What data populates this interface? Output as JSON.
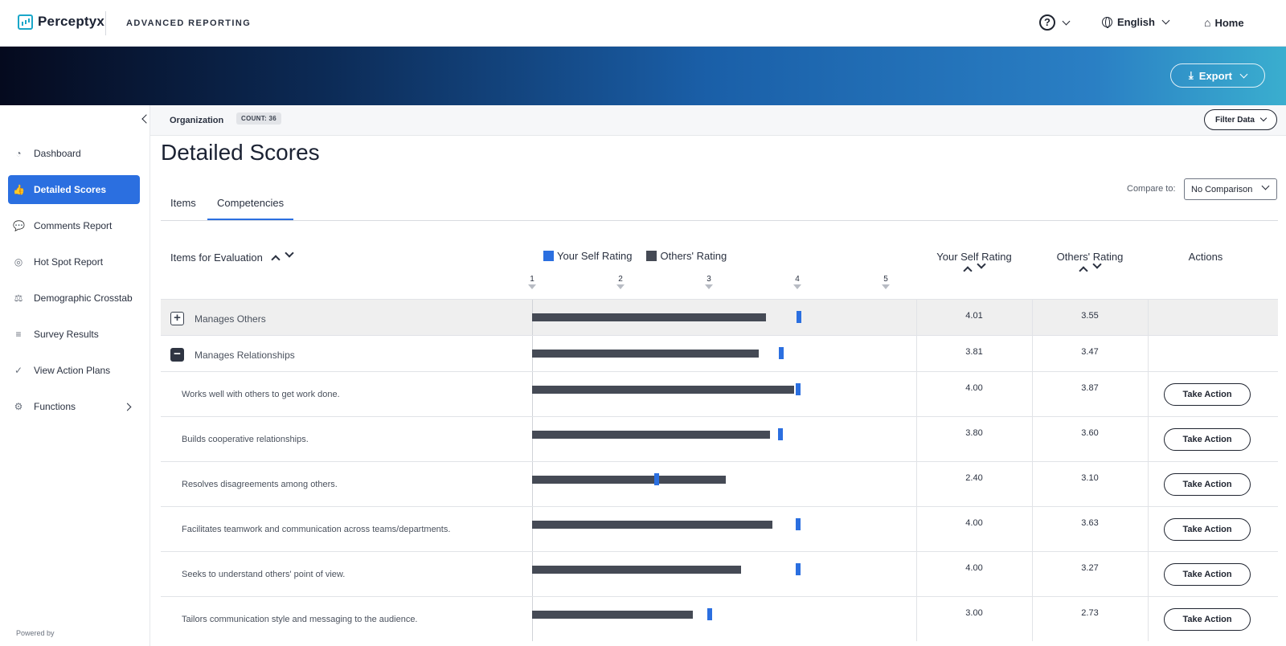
{
  "header": {
    "logo_text": "Perceptyx",
    "app_title": "ADVANCED REPORTING",
    "help_glyph": "?",
    "language": "English",
    "home_label": "Home"
  },
  "banner": {
    "export_label": "Export"
  },
  "sidebar": {
    "items": [
      {
        "label": "Dashboard",
        "icon": "dashboard-icon",
        "glyph": "◔"
      },
      {
        "label": "Detailed Scores",
        "icon": "thumbs-up-icon",
        "glyph": "👍",
        "active": true
      },
      {
        "label": "Comments Report",
        "icon": "comments-icon",
        "glyph": "💬"
      },
      {
        "label": "Hot Spot Report",
        "icon": "target-icon",
        "glyph": "◎"
      },
      {
        "label": "Demographic Crosstab",
        "icon": "scale-icon",
        "glyph": "⚖"
      },
      {
        "label": "Survey Results",
        "icon": "bar-chart-icon",
        "glyph": "≡"
      },
      {
        "label": "View Action Plans",
        "icon": "check-circle-icon",
        "glyph": "✓"
      },
      {
        "label": "Functions",
        "icon": "gear-icon",
        "glyph": "⚙"
      }
    ],
    "powered_by": "Powered by"
  },
  "orgbar": {
    "label": "Organization",
    "count": "COUNT: 36",
    "filter_label": "Filter Data"
  },
  "main": {
    "title": "Detailed Scores",
    "tabs": [
      {
        "label": "Items"
      },
      {
        "label": "Competencies"
      }
    ],
    "compare_label": "Compare to:",
    "compare_value": "No Comparison",
    "columns": {
      "items": "Items for Evaluation",
      "self": "Your Self Rating",
      "others": "Others' Rating",
      "actions": "Actions"
    },
    "legend": {
      "self": "Your Self Rating",
      "others": "Others' Rating"
    },
    "take_action_label": "Take Action"
  },
  "colors": {
    "self": "#2b6fe0",
    "others": "#454a55",
    "accent": "#2b6fe0"
  },
  "chart_data": {
    "type": "bar",
    "x_axis_ticks": [
      "1",
      "2",
      "3",
      "4",
      "5"
    ],
    "xlim": [
      1,
      5
    ],
    "rows": [
      {
        "label": "Manages Others",
        "kind": "group",
        "toggle": "+",
        "self": 4.01,
        "others": 3.55,
        "self_text": "4.01",
        "others_text": "3.55"
      },
      {
        "label": "Manages Relationships",
        "kind": "group",
        "toggle": "−",
        "self": 3.81,
        "others": 3.47,
        "self_text": "3.81",
        "others_text": "3.47"
      },
      {
        "label": "Works well with others to get work done.",
        "kind": "item",
        "self": 4.0,
        "others": 3.87,
        "self_text": "4.00",
        "others_text": "3.87"
      },
      {
        "label": "Builds cooperative relationships.",
        "kind": "item",
        "self": 3.8,
        "others": 3.6,
        "self_text": "3.80",
        "others_text": "3.60"
      },
      {
        "label": "Resolves disagreements among others.",
        "kind": "item",
        "self": 2.4,
        "others": 3.1,
        "self_text": "2.40",
        "others_text": "3.10"
      },
      {
        "label": "Facilitates teamwork and communication across teams/departments.",
        "kind": "item",
        "self": 4.0,
        "others": 3.63,
        "self_text": "4.00",
        "others_text": "3.63"
      },
      {
        "label": "Seeks to understand others' point of view.",
        "kind": "item",
        "self": 4.0,
        "others": 3.27,
        "self_text": "4.00",
        "others_text": "3.27"
      },
      {
        "label": "Tailors communication style and messaging to the audience.",
        "kind": "item",
        "self": 3.0,
        "others": 2.73,
        "self_text": "3.00",
        "others_text": "2.73"
      }
    ]
  }
}
